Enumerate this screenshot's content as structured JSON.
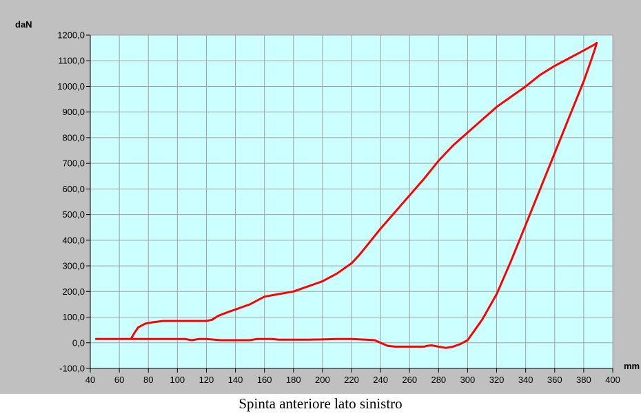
{
  "caption": "Spinta anteriore lato sinistro",
  "chart_data": {
    "type": "line",
    "title": "",
    "ylabel": "daN",
    "xlabel": "mm",
    "xlim": [
      40,
      400
    ],
    "ylim": [
      -100,
      1200
    ],
    "x_ticks": [
      40,
      60,
      80,
      100,
      120,
      140,
      160,
      180,
      200,
      220,
      240,
      260,
      280,
      300,
      320,
      340,
      360,
      380,
      400
    ],
    "y_ticks": [
      {
        "value": -100,
        "label": "-100,0"
      },
      {
        "value": 0,
        "label": "0,0"
      },
      {
        "value": 100,
        "label": "100,0"
      },
      {
        "value": 200,
        "label": "200,0"
      },
      {
        "value": 300,
        "label": "300,0"
      },
      {
        "value": 400,
        "label": "400,0"
      },
      {
        "value": 500,
        "label": "500,0"
      },
      {
        "value": 600,
        "label": "600,0"
      },
      {
        "value": 700,
        "label": "700,0"
      },
      {
        "value": 800,
        "label": "800,0"
      },
      {
        "value": 900,
        "label": "900,0"
      },
      {
        "value": 1000,
        "label": "1000,0"
      },
      {
        "value": 1100,
        "label": "1100,0"
      },
      {
        "value": 1200,
        "label": "1200,0"
      }
    ],
    "grid": true,
    "plot_background": "#ccffff",
    "frame_background": "#c0c0c0",
    "grid_color": "#a0a0a0",
    "series": [
      {
        "color": "#ff0000",
        "x": [
          44,
          68,
          70,
          73,
          78,
          83,
          90,
          100,
          110,
          120,
          124,
          128,
          135,
          140,
          145,
          150,
          155,
          160,
          165,
          170,
          175,
          180,
          185,
          190,
          195,
          200,
          210,
          220,
          225,
          230,
          240,
          250,
          260,
          270,
          280,
          290,
          300,
          310,
          320,
          330,
          340,
          350,
          360,
          370,
          380,
          388,
          389,
          388,
          385,
          380,
          370,
          360,
          350,
          340,
          330,
          320,
          310,
          300,
          295,
          290,
          285,
          280,
          277,
          275,
          272,
          270,
          265,
          260,
          255,
          250,
          245,
          240,
          236,
          230,
          220,
          210,
          200,
          190,
          180,
          170,
          165,
          160,
          155,
          150,
          140,
          130,
          120,
          115,
          110,
          105,
          100,
          90,
          80,
          70,
          60,
          44
        ],
        "y": [
          15,
          15,
          35,
          60,
          75,
          80,
          85,
          85,
          85,
          85,
          90,
          105,
          120,
          130,
          140,
          150,
          165,
          180,
          185,
          190,
          195,
          200,
          210,
          220,
          230,
          240,
          270,
          310,
          340,
          375,
          445,
          510,
          575,
          640,
          710,
          770,
          820,
          870,
          920,
          960,
          1000,
          1045,
          1080,
          1110,
          1140,
          1165,
          1170,
          1150,
          1100,
          1020,
          880,
          740,
          600,
          460,
          320,
          190,
          90,
          10,
          -5,
          -15,
          -20,
          -15,
          -12,
          -10,
          -12,
          -15,
          -15,
          -15,
          -15,
          -15,
          -12,
          0,
          10,
          12,
          15,
          15,
          13,
          12,
          12,
          12,
          15,
          15,
          15,
          10,
          10,
          10,
          15,
          15,
          10,
          15,
          15,
          15,
          15,
          15,
          15,
          15
        ]
      }
    ]
  }
}
